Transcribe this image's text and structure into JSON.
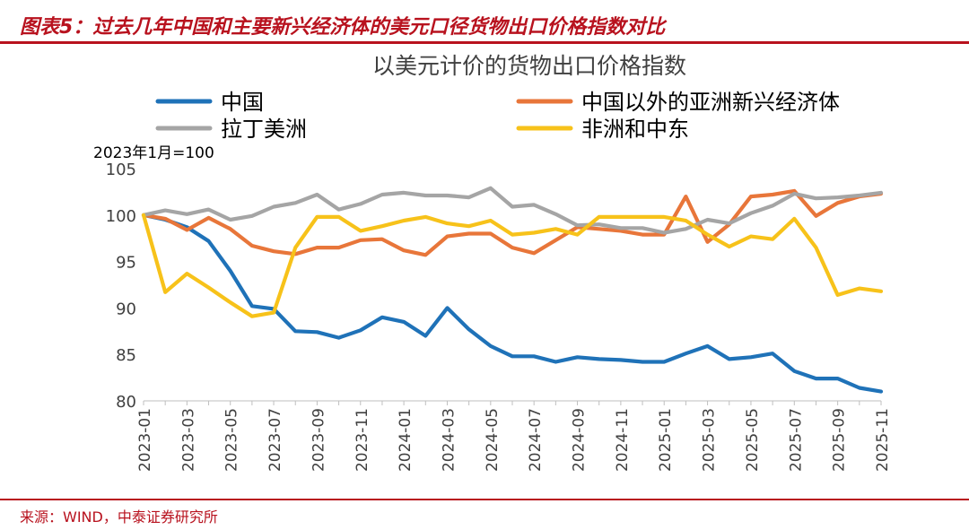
{
  "figure": {
    "header": "图表5：过去几年中国和主要新兴经济体的美元口径货物出口价格指数对比",
    "source": "来源：WIND，中泰证券研究所"
  },
  "chart_data": {
    "type": "line",
    "title": "以美元计价的货物出口价格指数",
    "unit_note": "2023年1月=100",
    "ylim": [
      80,
      105
    ],
    "yticks": [
      80,
      85,
      90,
      95,
      100,
      105
    ],
    "grid": false,
    "legend_position": "top",
    "x": [
      "2023-01",
      "2023-02",
      "2023-03",
      "2023-04",
      "2023-05",
      "2023-06",
      "2023-07",
      "2023-08",
      "2023-09",
      "2023-10",
      "2023-11",
      "2023-12",
      "2024-01",
      "2024-02",
      "2024-03",
      "2024-04",
      "2024-05",
      "2024-06",
      "2024-07",
      "2024-08",
      "2024-09",
      "2024-10",
      "2024-11",
      "2024-12",
      "2025-01",
      "2025-02",
      "2025-03",
      "2025-04",
      "2025-05",
      "2025-06",
      "2025-07",
      "2025-08",
      "2025-09",
      "2025-10",
      "2025-11"
    ],
    "xtick_labels": [
      "2023-01",
      "2023-03",
      "2023-05",
      "2023-07",
      "2023-09",
      "2023-11",
      "2024-01",
      "2024-03",
      "2024-05",
      "2024-07",
      "2024-09",
      "2024-11",
      "2025-01",
      "2025-03",
      "2025-05",
      "2025-07",
      "2025-09",
      "2025-11"
    ],
    "series": [
      {
        "name": "中国",
        "color": "#1f72b8",
        "values": [
          100,
          99.5,
          98.7,
          97.2,
          94.0,
          90.2,
          89.9,
          87.5,
          87.4,
          86.8,
          87.6,
          89.0,
          88.5,
          87.0,
          90.0,
          87.7,
          85.9,
          84.8,
          84.8,
          84.2,
          84.7,
          84.5,
          84.4,
          84.2,
          84.2,
          85.1,
          85.9,
          84.5,
          84.7,
          85.1,
          83.2,
          82.4,
          82.4,
          81.4,
          81.0
        ]
      },
      {
        "name": "中国以外的亚洲新兴经济体",
        "color": "#e8763a",
        "values": [
          100,
          99.6,
          98.4,
          99.7,
          98.5,
          96.7,
          96.1,
          95.8,
          96.5,
          96.5,
          97.3,
          97.4,
          96.2,
          95.7,
          97.7,
          98.0,
          98.0,
          96.5,
          95.9,
          97.3,
          98.7,
          98.5,
          98.3,
          97.9,
          97.9,
          102.0,
          97.1,
          99.0,
          102.0,
          102.2,
          102.6,
          99.9,
          101.3,
          102.0,
          102.3
        ]
      },
      {
        "name": "拉丁美洲",
        "color": "#a5a5a5",
        "values": [
          100,
          100.5,
          100.1,
          100.6,
          99.5,
          99.9,
          100.9,
          101.3,
          102.2,
          100.6,
          101.2,
          102.2,
          102.4,
          102.1,
          102.1,
          101.9,
          102.9,
          100.9,
          101.1,
          100.1,
          98.9,
          99.0,
          98.6,
          98.6,
          98.1,
          98.5,
          99.5,
          99.1,
          100.2,
          101.0,
          102.3,
          101.8,
          101.9,
          102.1,
          102.4
        ]
      },
      {
        "name": "非洲和中东",
        "color": "#f7c21a",
        "values": [
          100,
          91.7,
          93.7,
          92.2,
          90.6,
          89.1,
          89.5,
          96.5,
          99.8,
          99.8,
          98.3,
          98.8,
          99.4,
          99.8,
          99.1,
          98.8,
          99.4,
          97.9,
          98.1,
          98.5,
          97.9,
          99.8,
          99.8,
          99.8,
          99.8,
          99.4,
          97.9,
          96.6,
          97.7,
          97.4,
          99.6,
          96.5,
          91.4,
          92.1,
          91.8
        ]
      }
    ]
  }
}
